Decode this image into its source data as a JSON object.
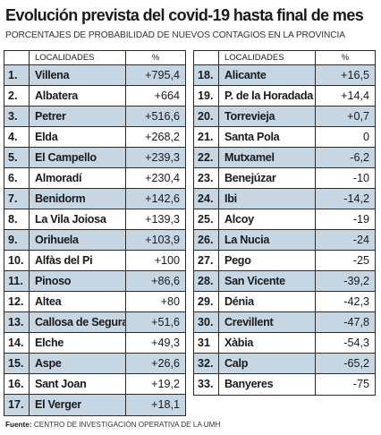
{
  "title": "Evolución prevista del covid-19 hasta final de mes",
  "subtitle": "PORCENTAJES DE PROBABILIDAD DE NUEVOS CONTAGIOS EN LA PROVINCIA",
  "headers": {
    "name": "LOCALIDADES",
    "value": "%"
  },
  "left_rows": [
    {
      "rank": "1.",
      "name": "Villena",
      "value": "+795,4"
    },
    {
      "rank": "2.",
      "name": "Albatera",
      "value": "+664"
    },
    {
      "rank": "3.",
      "name": "Petrer",
      "value": "+516,6"
    },
    {
      "rank": "4.",
      "name": "Elda",
      "value": "+268,2"
    },
    {
      "rank": "5.",
      "name": "El Campello",
      "value": "+239,3"
    },
    {
      "rank": "6.",
      "name": "Almoradí",
      "value": "+230,4"
    },
    {
      "rank": "7.",
      "name": "Benidorm",
      "value": "+142,6"
    },
    {
      "rank": "8.",
      "name": "La Vila Joiosa",
      "value": "+139,3"
    },
    {
      "rank": "9.",
      "name": "Orihuela",
      "value": "+103,9"
    },
    {
      "rank": "10.",
      "name": "Alfàs del Pi",
      "value": "+100"
    },
    {
      "rank": "11.",
      "name": "Pinoso",
      "value": "+86,6"
    },
    {
      "rank": "12.",
      "name": "Altea",
      "value": "+80"
    },
    {
      "rank": "13.",
      "name": "Callosa de Segura",
      "value": "+51,6"
    },
    {
      "rank": "14.",
      "name": "Elche",
      "value": "+49,3"
    },
    {
      "rank": "15.",
      "name": "Aspe",
      "value": "+26,6"
    },
    {
      "rank": "16.",
      "name": "Sant Joan",
      "value": "+19,2"
    },
    {
      "rank": "17.",
      "name": "El Verger",
      "value": "+18,1"
    }
  ],
  "right_rows": [
    {
      "rank": "18.",
      "name": "Alicante",
      "value": "+16,5"
    },
    {
      "rank": "19.",
      "name": "P. de la Horadada",
      "value": "+14,4"
    },
    {
      "rank": "20.",
      "name": "Torrevieja",
      "value": "+0,7"
    },
    {
      "rank": "21.",
      "name": "Santa Pola",
      "value": "0"
    },
    {
      "rank": "22.",
      "name": "Mutxamel",
      "value": "-6,2"
    },
    {
      "rank": "23.",
      "name": "Benejúzar",
      "value": "-10"
    },
    {
      "rank": "24.",
      "name": "Ibi",
      "value": "-14,2"
    },
    {
      "rank": "25.",
      "name": "Alcoy",
      "value": "-19"
    },
    {
      "rank": "26.",
      "name": "La Nucia",
      "value": "-24"
    },
    {
      "rank": "27.",
      "name": "Pego",
      "value": "-25"
    },
    {
      "rank": "28.",
      "name": "San Vicente",
      "value": "-39,2"
    },
    {
      "rank": "29.",
      "name": "Dénia",
      "value": "-42,3"
    },
    {
      "rank": "30.",
      "name": "Crevillent",
      "value": "-47,8"
    },
    {
      "rank": "31",
      "name": "Xàbia",
      "value": "-54,3"
    },
    {
      "rank": "32.",
      "name": "Calp",
      "value": "-65,2"
    },
    {
      "rank": "33.",
      "name": "Banyeres",
      "value": "-75"
    }
  ],
  "source": {
    "label": "Fuente:",
    "text": "CENTRO DE INVESTIGACIÓN OPERATIVA DE LA UMH"
  }
}
